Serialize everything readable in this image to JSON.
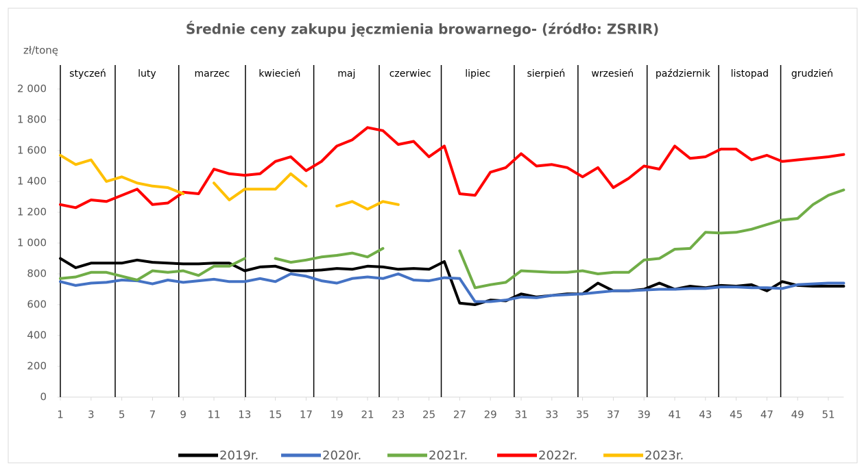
{
  "chart_data": {
    "type": "line",
    "title": "Średnie ceny zakupu jęczmienia browarnego- (źródło: ZSRIR)",
    "y_label": "zł/tonę",
    "x": [
      1,
      2,
      3,
      4,
      5,
      6,
      7,
      8,
      9,
      10,
      11,
      12,
      13,
      14,
      15,
      16,
      17,
      18,
      19,
      20,
      21,
      22,
      23,
      24,
      25,
      26,
      27,
      28,
      29,
      30,
      31,
      32,
      33,
      34,
      35,
      36,
      37,
      38,
      39,
      40,
      41,
      42,
      43,
      44,
      45,
      46,
      47,
      48,
      49,
      50,
      51,
      52
    ],
    "xlim": [
      1,
      52
    ],
    "xticks": [
      1,
      3,
      5,
      7,
      9,
      11,
      13,
      15,
      17,
      19,
      21,
      23,
      25,
      27,
      29,
      31,
      33,
      35,
      37,
      39,
      41,
      43,
      45,
      47,
      49,
      51
    ],
    "ylim": [
      0,
      2000
    ],
    "yticks": [
      0,
      200,
      400,
      600,
      800,
      {
        "value": 1000,
        "label": "1 000"
      },
      {
        "value": 1200,
        "label": "1 200"
      },
      {
        "value": 1400,
        "label": "1 400"
      },
      {
        "value": 1600,
        "label": "1 600"
      },
      {
        "value": 1800,
        "label": "1 800"
      },
      {
        "value": 2000,
        "label": "2 000"
      }
    ],
    "month_labels": [
      "styczeń",
      "luty",
      "marzec",
      "kwiecień",
      "maj",
      "czerwiec",
      "lipiec",
      "sierpień",
      "wrzesień",
      "październik",
      "listopad",
      "grudzień"
    ],
    "month_boundaries": [
      1,
      4.57,
      8.71,
      13.05,
      17.5,
      21.76,
      25.8,
      30.55,
      34.7,
      39.2,
      43.86,
      47.9
    ],
    "series": [
      {
        "name": "2019r.",
        "color": "#000000",
        "values": [
          900,
          840,
          870,
          870,
          870,
          890,
          875,
          870,
          865,
          865,
          870,
          870,
          820,
          845,
          850,
          820,
          820,
          825,
          835,
          830,
          850,
          845,
          830,
          835,
          830,
          880,
          610,
          600,
          630,
          625,
          670,
          650,
          660,
          670,
          670,
          740,
          690,
          690,
          700,
          740,
          700,
          720,
          710,
          725,
          720,
          730,
          690,
          750,
          725,
          720,
          720,
          720
        ]
      },
      {
        "name": "2020r.",
        "color": "#4472c4",
        "values": [
          750,
          725,
          740,
          745,
          760,
          755,
          735,
          760,
          745,
          755,
          765,
          750,
          750,
          770,
          750,
          800,
          785,
          755,
          740,
          770,
          780,
          770,
          800,
          760,
          755,
          775,
          770,
          620,
          620,
          630,
          650,
          645,
          660,
          665,
          670,
          680,
          690,
          690,
          695,
          700,
          700,
          705,
          705,
          715,
          715,
          710,
          710,
          705,
          730,
          735,
          740,
          740
        ]
      },
      {
        "name": "2021r.",
        "color": "#70ad47",
        "values": [
          770,
          780,
          810,
          810,
          785,
          760,
          820,
          810,
          820,
          790,
          850,
          850,
          900,
          null,
          900,
          875,
          890,
          910,
          920,
          935,
          910,
          965,
          null,
          null,
          null,
          null,
          950,
          710,
          730,
          745,
          820,
          815,
          810,
          810,
          820,
          800,
          810,
          810,
          890,
          900,
          960,
          965,
          1070,
          1065,
          1070,
          1090,
          1120,
          1150,
          1160,
          1250,
          1310,
          1345
        ]
      },
      {
        "name": "2022r.",
        "color": "#ff0000",
        "values": [
          1250,
          1230,
          1280,
          1270,
          1310,
          1350,
          1250,
          1260,
          1330,
          1320,
          1480,
          1450,
          1440,
          1450,
          1530,
          1560,
          1470,
          1530,
          1630,
          1670,
          1750,
          1730,
          1640,
          1660,
          1560,
          1630,
          1320,
          1310,
          1460,
          1490,
          1580,
          1500,
          1510,
          1490,
          1430,
          1490,
          1360,
          1420,
          1500,
          1480,
          1630,
          1550,
          1560,
          1610,
          1610,
          1540,
          1570,
          1530,
          1540,
          1550,
          1560,
          1575
        ]
      },
      {
        "name": "2023r.",
        "color": "#ffc000",
        "values": [
          1570,
          1510,
          1540,
          1400,
          1430,
          1390,
          1370,
          1360,
          1320,
          null,
          1390,
          1280,
          1350,
          1350,
          1350,
          1450,
          1370,
          null,
          1240,
          1270,
          1220,
          1270,
          1250,
          null,
          null,
          null,
          null,
          null,
          null,
          null,
          null,
          null,
          null,
          null,
          null,
          null,
          null,
          null,
          null,
          null,
          null,
          null,
          null,
          null,
          null,
          null,
          null,
          null,
          null,
          null,
          null,
          null
        ]
      }
    ]
  }
}
